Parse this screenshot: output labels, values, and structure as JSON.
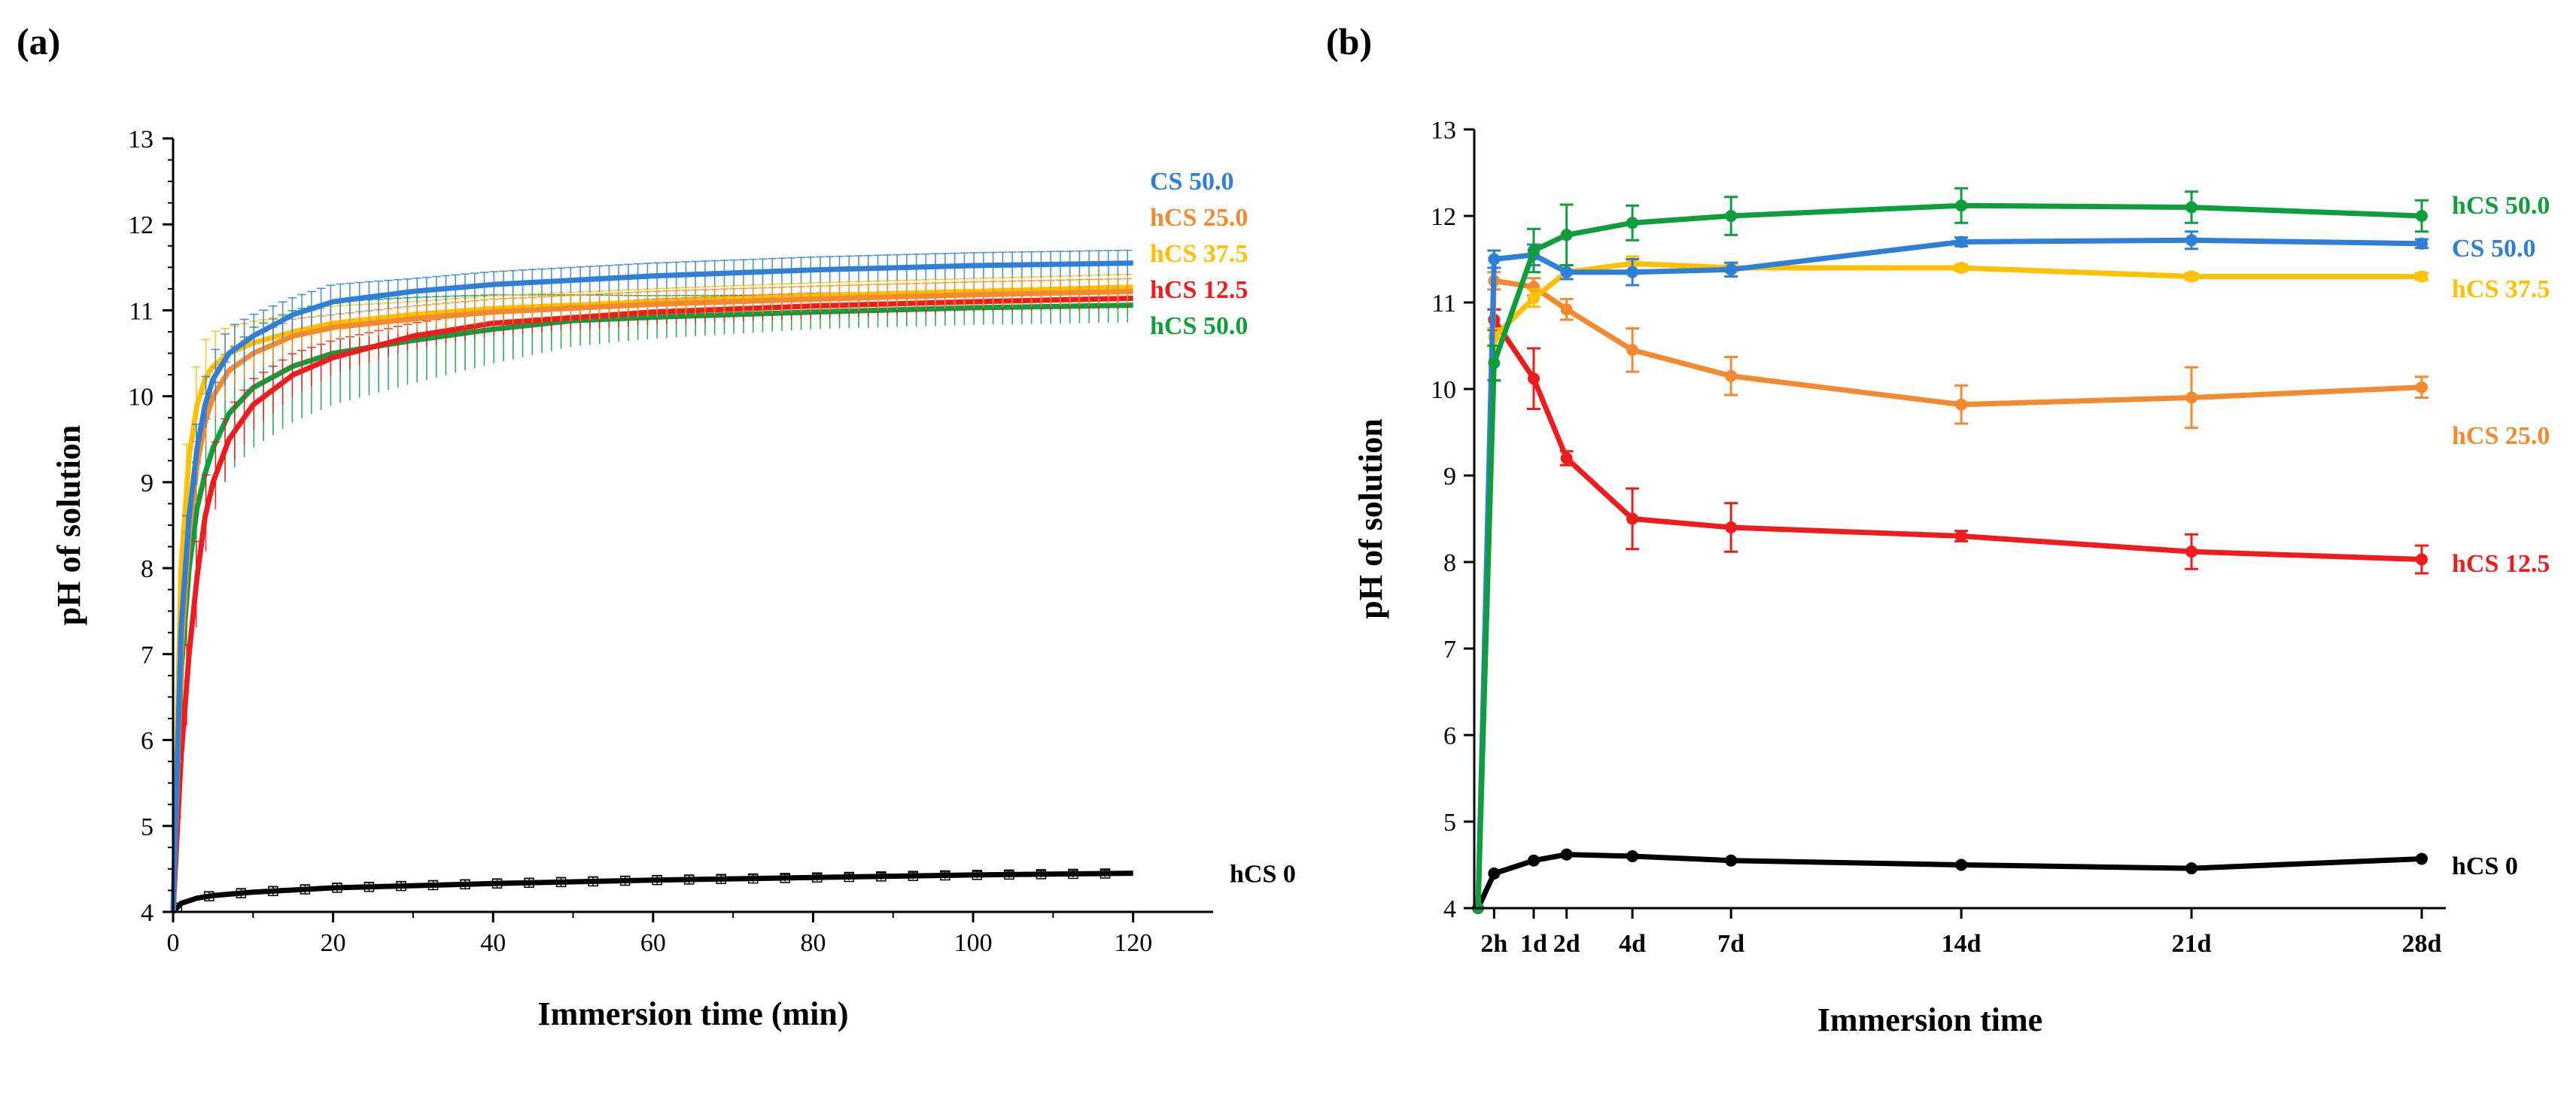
{
  "figure": {
    "panel_a_label": "(a)",
    "panel_b_label": "(b)"
  },
  "colors": {
    "CS 50.0": "#2f7fd6",
    "hCS 25.0": "#f28a30",
    "hCS 37.5": "#ffc000",
    "hCS 12.5": "#ee1c1c",
    "hCS 50.0": "#0f9e3c",
    "hCS 0": "#000000"
  },
  "chart_data": [
    {
      "panel": "(a)",
      "type": "line",
      "title": "",
      "xlabel": "Immersion time (min)",
      "ylabel": "pH of solution",
      "xlim": [
        0,
        130
      ],
      "ylim": [
        4,
        13
      ],
      "xticks": [
        0,
        20,
        40,
        60,
        80,
        100,
        120
      ],
      "yticks": [
        4,
        5,
        6,
        7,
        8,
        9,
        10,
        11,
        12,
        13
      ],
      "legend_position": "right",
      "legend_order": [
        "CS 50.0",
        "hCS 25.0",
        "hCS 37.5",
        "hCS 12.5",
        "hCS 50.0"
      ],
      "series": [
        {
          "name": "CS 50.0",
          "x": [
            0,
            1,
            2,
            3,
            4,
            5,
            7,
            10,
            15,
            20,
            30,
            40,
            60,
            80,
            100,
            120
          ],
          "values": [
            4.0,
            7.3,
            8.6,
            9.4,
            9.9,
            10.2,
            10.5,
            10.7,
            10.95,
            11.1,
            11.22,
            11.3,
            11.4,
            11.47,
            11.52,
            11.55
          ],
          "err": [
            0.0,
            0.4,
            0.4,
            0.35,
            0.3,
            0.3,
            0.3,
            0.25,
            0.2,
            0.2,
            0.15,
            0.15,
            0.15,
            0.15,
            0.15,
            0.15
          ]
        },
        {
          "name": "hCS 25.0",
          "x": [
            0,
            1,
            2,
            3,
            4,
            5,
            7,
            10,
            15,
            20,
            30,
            40,
            60,
            80,
            100,
            120
          ],
          "values": [
            4.0,
            7.0,
            8.4,
            9.2,
            9.7,
            10.0,
            10.3,
            10.5,
            10.7,
            10.8,
            10.9,
            10.98,
            11.07,
            11.13,
            11.18,
            11.22
          ],
          "err": [
            0.0,
            0.5,
            0.4,
            0.35,
            0.3,
            0.3,
            0.25,
            0.2,
            0.2,
            0.15,
            0.15,
            0.15,
            0.15,
            0.15,
            0.15,
            0.15
          ]
        },
        {
          "name": "hCS 37.5",
          "x": [
            0,
            1,
            2,
            3,
            4,
            5,
            7,
            10,
            15,
            20,
            30,
            40,
            60,
            80,
            100,
            120
          ],
          "values": [
            4.0,
            8.0,
            9.3,
            9.9,
            10.2,
            10.35,
            10.5,
            10.62,
            10.75,
            10.85,
            10.95,
            11.02,
            11.1,
            11.17,
            11.22,
            11.27
          ],
          "err": [
            0.0,
            0.6,
            0.5,
            0.5,
            0.45,
            0.4,
            0.3,
            0.25,
            0.2,
            0.2,
            0.15,
            0.15,
            0.15,
            0.15,
            0.15,
            0.15
          ]
        },
        {
          "name": "hCS 12.5",
          "x": [
            0,
            1,
            2,
            3,
            4,
            5,
            7,
            10,
            15,
            20,
            30,
            40,
            60,
            80,
            100,
            120
          ],
          "values": [
            4.0,
            5.8,
            7.0,
            7.9,
            8.6,
            9.0,
            9.5,
            9.9,
            10.25,
            10.45,
            10.7,
            10.85,
            10.98,
            11.05,
            11.1,
            11.14
          ],
          "err": [
            0.0,
            0.4,
            0.5,
            0.5,
            0.45,
            0.4,
            0.35,
            0.3,
            0.25,
            0.2,
            0.15,
            0.15,
            0.15,
            0.15,
            0.12,
            0.12
          ]
        },
        {
          "name": "hCS 50.0",
          "x": [
            0,
            1,
            2,
            3,
            4,
            5,
            7,
            10,
            15,
            20,
            30,
            40,
            50,
            60,
            80,
            100,
            120
          ],
          "values": [
            4.0,
            6.8,
            8.0,
            8.7,
            9.1,
            9.4,
            9.8,
            10.1,
            10.35,
            10.5,
            10.65,
            10.78,
            10.88,
            10.92,
            10.98,
            11.03,
            11.06
          ],
          "err": [
            0.0,
            0.5,
            0.6,
            0.6,
            0.6,
            0.7,
            0.7,
            0.7,
            0.65,
            0.6,
            0.5,
            0.4,
            0.3,
            0.25,
            0.2,
            0.2,
            0.2
          ]
        },
        {
          "name": "hCS 0",
          "x": [
            0,
            1,
            3,
            5,
            10,
            20,
            40,
            60,
            80,
            100,
            120
          ],
          "values": [
            4.0,
            4.1,
            4.16,
            4.19,
            4.23,
            4.28,
            4.33,
            4.37,
            4.4,
            4.43,
            4.45
          ],
          "err": [
            0.0,
            0.05,
            0.05,
            0.05,
            0.05,
            0.05,
            0.05,
            0.05,
            0.04,
            0.04,
            0.04
          ]
        }
      ]
    },
    {
      "panel": "(b)",
      "type": "line",
      "title": "",
      "xlabel": "Immersion time",
      "ylabel": "pH of solution",
      "ylim": [
        4,
        13
      ],
      "yticks": [
        4,
        5,
        6,
        7,
        8,
        9,
        10,
        11,
        12,
        13
      ],
      "x_days": [
        0,
        0.0833,
        1,
        2,
        4,
        7,
        14,
        21,
        28
      ],
      "x_tick_days": [
        0.0833,
        1,
        2,
        4,
        7,
        14,
        21,
        28
      ],
      "x_tick_labels": [
        "2h",
        "1d",
        "2d",
        "4d",
        "7d",
        "14d",
        "21d",
        "28d"
      ],
      "legend_position": "right",
      "series": [
        {
          "name": "hCS 50.0",
          "values": [
            4.0,
            10.3,
            11.6,
            11.78,
            11.92,
            12.0,
            12.12,
            12.1,
            12.0
          ],
          "err": [
            0,
            0.2,
            0.25,
            0.35,
            0.2,
            0.22,
            0.2,
            0.18,
            0.18
          ]
        },
        {
          "name": "CS 50.0",
          "values": [
            4.0,
            11.5,
            11.55,
            11.35,
            11.35,
            11.38,
            11.7,
            11.72,
            11.68
          ],
          "err": [
            0,
            0.1,
            0.12,
            0.08,
            0.15,
            0.08,
            0.05,
            0.1,
            0.05
          ]
        },
        {
          "name": "hCS 37.5",
          "values": [
            4.0,
            10.6,
            11.05,
            11.35,
            11.45,
            11.4,
            11.4,
            11.3,
            11.3
          ],
          "err": [
            0,
            0.1,
            0.1,
            0.08,
            0.08,
            0.05,
            0.04,
            0.04,
            0.04
          ]
        },
        {
          "name": "hCS 25.0",
          "values": [
            4.0,
            11.25,
            11.18,
            10.92,
            10.45,
            10.15,
            9.82,
            9.9,
            10.02
          ],
          "err": [
            0,
            0.1,
            0.1,
            0.12,
            0.25,
            0.22,
            0.22,
            0.35,
            0.12
          ]
        },
        {
          "name": "hCS 12.5",
          "values": [
            4.0,
            10.8,
            10.12,
            9.2,
            8.5,
            8.4,
            8.3,
            8.12,
            8.03
          ],
          "err": [
            0,
            0.12,
            0.35,
            0.08,
            0.35,
            0.28,
            0.06,
            0.2,
            0.16
          ]
        },
        {
          "name": "hCS 0",
          "values": [
            4.0,
            4.4,
            4.55,
            4.62,
            4.6,
            4.55,
            4.5,
            4.46,
            4.57
          ],
          "err": [
            0,
            0.02,
            0.02,
            0.02,
            0.02,
            0.02,
            0.02,
            0.02,
            0.02
          ]
        }
      ]
    }
  ]
}
